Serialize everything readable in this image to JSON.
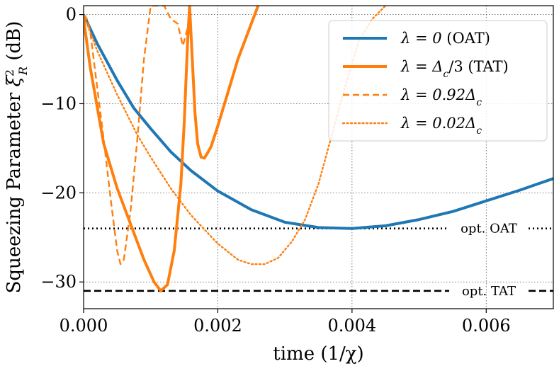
{
  "chart_data": {
    "type": "line",
    "xlabel": "time (1/χ)",
    "ylabel": "Squeezing Parameter ξ²_R (dB)",
    "ylabel_text": "Squeezing Parameter ",
    "ylabel_symbol": "ξ",
    "ylabel_sup": "2",
    "ylabel_sub": "R",
    "ylabel_unit": " (dB)",
    "xlim": [
      0,
      0.007
    ],
    "ylim": [
      -33,
      1
    ],
    "grid": true,
    "xticks": [
      0.0,
      0.002,
      0.004,
      0.006
    ],
    "xtick_labels": [
      "0.000",
      "0.002",
      "0.004",
      "0.006"
    ],
    "yticks": [
      0,
      -10,
      -20,
      -30
    ],
    "ytick_labels": [
      "0",
      "−10",
      "−20",
      "−30"
    ],
    "legend_position": "top-right",
    "series": [
      {
        "name": "λ = 0 (OAT)",
        "color": "#1f77b4",
        "style": "solid",
        "width": "thick",
        "x": [
          0,
          0.0002,
          0.0005,
          0.00075,
          0.001,
          0.0013,
          0.0016,
          0.002,
          0.0025,
          0.003,
          0.0035,
          0.004,
          0.0045,
          0.005,
          0.0055,
          0.006,
          0.0065,
          0.007
        ],
        "y": [
          0,
          -3.2,
          -7.4,
          -10.5,
          -12.8,
          -15.4,
          -17.5,
          -19.8,
          -21.9,
          -23.3,
          -23.9,
          -24.0,
          -23.7,
          -23.0,
          -22.1,
          -20.9,
          -19.7,
          -18.4
        ]
      },
      {
        "name": "λ = Δc/3 (TAT)",
        "color": "#ff7f0e",
        "style": "solid",
        "width": "thick",
        "segments": [
          {
            "x": [
              0,
              0.0001,
              0.0003,
              0.0005,
              0.0007,
              0.0009,
              0.00105,
              0.00115,
              0.00125,
              0.00135,
              0.00145,
              0.0015,
              0.00155,
              0.00158
            ],
            "y": [
              -0.5,
              -6,
              -14.5,
              -19.5,
              -23.5,
              -27.5,
              -30,
              -31.0,
              -30.3,
              -26.5,
              -19,
              -12,
              -3,
              1
            ]
          },
          {
            "x": [
              0.00158,
              0.00162,
              0.00166,
              0.0017,
              0.00175,
              0.0018,
              0.00185,
              0.0019,
              0.002,
              0.0021,
              0.0022,
              0.0023,
              0.0024,
              0.0025,
              0.0026
            ],
            "y": [
              1,
              -5,
              -11,
              -14.5,
              -16,
              -16.1,
              -15.5,
              -14.8,
              -12.5,
              -10,
              -7.5,
              -5,
              -3,
              -1,
              1
            ]
          }
        ]
      },
      {
        "name": "λ = 0.92Δc",
        "color": "#ff7f0e",
        "style": "dashed",
        "width": "normal",
        "segments": [
          {
            "x": [
              0,
              5e-05,
              0.0001,
              0.0002,
              0.0003,
              0.0004,
              0.0005,
              0.00055,
              0.0006,
              0.0007,
              0.0008,
              0.0009,
              0.001,
              0.0011,
              0.0012,
              0.0013,
              0.0014,
              0.00148,
              0.00155,
              0.0016
            ],
            "y": [
              0,
              -0.5,
              -2,
              -8,
              -14,
              -20.5,
              -26.5,
              -28,
              -27.5,
              -22,
              -14,
              -5,
              1,
              1,
              1,
              -0.5,
              -1,
              -3.5,
              -1.5,
              1
            ]
          }
        ]
      },
      {
        "name": "λ = 0.02Δc",
        "color": "#ff7f0e",
        "style": "dotted",
        "width": "normal",
        "x": [
          0,
          0.0002,
          0.0005,
          0.0008,
          0.001,
          0.0013,
          0.0016,
          0.002,
          0.0023,
          0.0025,
          0.0027,
          0.0029,
          0.0031,
          0.0033,
          0.0035,
          0.0037,
          0.0039,
          0.0041,
          0.0043,
          0.0045
        ],
        "y": [
          0,
          -4,
          -9,
          -13.5,
          -16,
          -19.5,
          -22.5,
          -25.7,
          -27.5,
          -28,
          -28,
          -27.3,
          -25.5,
          -23,
          -19,
          -13.5,
          -8,
          -3,
          -0.5,
          1
        ]
      }
    ],
    "reference_lines": [
      {
        "label": "opt. OAT",
        "y": -24.0,
        "style": "dotted",
        "color": "#000000"
      },
      {
        "label": "opt. TAT",
        "y": -31.0,
        "style": "dashed",
        "color": "#000000"
      }
    ]
  },
  "legend": {
    "items": [
      {
        "prefix": "λ = 0 ",
        "main": "(OAT)",
        "sub": ""
      },
      {
        "prefix": "λ = Δ",
        "main": "/3 (TAT)",
        "sub": "c"
      },
      {
        "prefix": "λ = 0.92Δ",
        "main": "",
        "sub": "c"
      },
      {
        "prefix": "λ = 0.02Δ",
        "main": "",
        "sub": "c"
      }
    ]
  }
}
